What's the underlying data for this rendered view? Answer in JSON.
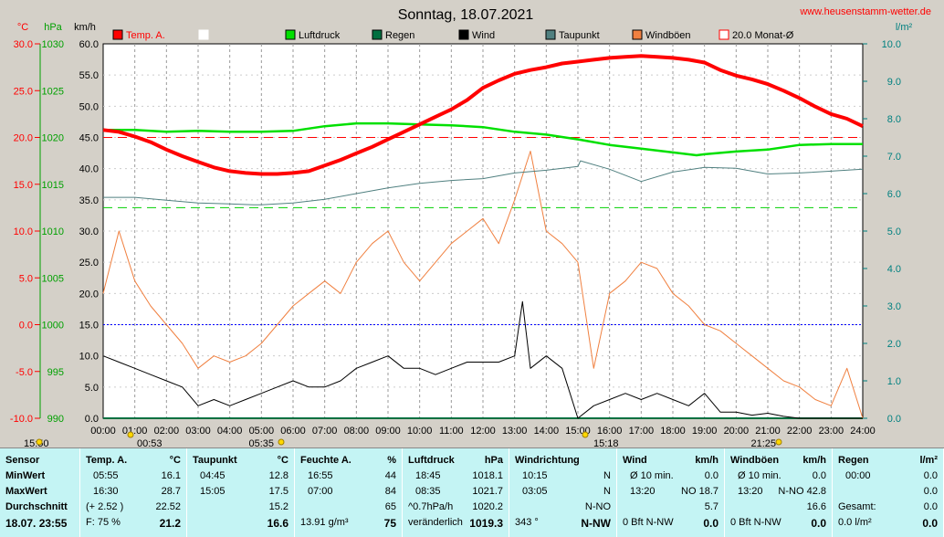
{
  "header": {
    "date_title": "Sonntag, 18.07.2021",
    "site_url": "www.heusenstamm-wetter.de"
  },
  "chart_data": {
    "type": "line",
    "title": "Sonntag, 18.07.2021",
    "units_left": [
      "°C",
      "hPa",
      "km/h"
    ],
    "unit_right": "l/m²",
    "axes": {
      "temp": {
        "label": "°C",
        "ticks": [
          "30.0",
          "25.0",
          "20.0",
          "15.0",
          "10.0",
          "5.0",
          "0.0",
          "-5.0",
          "-10.0"
        ],
        "range": [
          -10,
          30
        ],
        "color": "#ff0000"
      },
      "pressure": {
        "label": "hPa",
        "ticks": [
          "1030",
          "1025",
          "1020",
          "1015",
          "1010",
          "1005",
          "1000",
          "995",
          "990"
        ],
        "range": [
          990,
          1030
        ],
        "color": "#00a000"
      },
      "wind": {
        "label": "km/h",
        "ticks": [
          "60.0",
          "55.0",
          "50.0",
          "45.0",
          "40.0",
          "35.0",
          "30.0",
          "25.0",
          "20.0",
          "15.0",
          "10.0",
          "5.0",
          "0.0"
        ],
        "range": [
          0,
          60
        ],
        "color": "#000000"
      },
      "rain": {
        "label": "l/m²",
        "ticks": [
          "10.0",
          "9.0",
          "8.0",
          "7.0",
          "6.0",
          "5.0",
          "4.0",
          "3.0",
          "2.0",
          "1.0",
          "0.0"
        ],
        "range": [
          0,
          10
        ],
        "color": "#008080"
      }
    },
    "x_ticks": [
      "00:00",
      "01:00",
      "02:00",
      "03:00",
      "04:00",
      "05:00",
      "06:00",
      "07:00",
      "08:00",
      "09:00",
      "10:00",
      "11:00",
      "12:00",
      "13:00",
      "14:00",
      "15:00",
      "16:00",
      "17:00",
      "18:00",
      "19:00",
      "20:00",
      "21:00",
      "22:00",
      "23:00",
      "24:00"
    ],
    "x_range_hours": [
      0,
      24
    ],
    "legend": [
      {
        "label": "Temp. A.",
        "color": "#ff0000",
        "style": "filled"
      },
      {
        "label": "",
        "color": "#ffffff",
        "style": "outline"
      },
      {
        "label": "Luftdruck",
        "color": "#00e000",
        "style": "filled"
      },
      {
        "label": "Regen",
        "color": "#007040",
        "style": "filled"
      },
      {
        "label": "Wind",
        "color": "#000000",
        "style": "filled"
      },
      {
        "label": "Taupunkt",
        "color": "#508080",
        "style": "filled"
      },
      {
        "label": "Windböen",
        "color": "#f08040",
        "style": "filled"
      },
      {
        "label": "20.0 Monat-Ø",
        "color": "#ff0000",
        "style": "outline"
      }
    ],
    "reference_lines": {
      "temp_month_avg": 20.0,
      "pressure_ref": 1012.5,
      "zero_temp": 0.0
    },
    "series": [
      {
        "name": "Temp. A.",
        "axis": "temp",
        "color": "#ff0000",
        "x": [
          0,
          0.5,
          1,
          1.5,
          2,
          2.5,
          3,
          3.5,
          4,
          4.5,
          5,
          5.5,
          6,
          6.5,
          7,
          7.5,
          8,
          8.5,
          9,
          9.5,
          10,
          10.5,
          11,
          11.5,
          12,
          12.5,
          13,
          13.5,
          14,
          14.5,
          15,
          15.5,
          16,
          16.5,
          17,
          17.5,
          18,
          18.5,
          19,
          19.5,
          20,
          20.5,
          21,
          21.5,
          22,
          22.5,
          23,
          23.5,
          24
        ],
        "y": [
          20.8,
          20.6,
          20.1,
          19.5,
          18.7,
          18.0,
          17.4,
          16.8,
          16.4,
          16.2,
          16.1,
          16.1,
          16.2,
          16.4,
          17.0,
          17.6,
          18.3,
          19.0,
          19.8,
          20.6,
          21.4,
          22.2,
          23.0,
          24.0,
          25.3,
          26.1,
          26.8,
          27.2,
          27.5,
          27.9,
          28.1,
          28.3,
          28.5,
          28.6,
          28.7,
          28.6,
          28.5,
          28.3,
          28.0,
          27.2,
          26.6,
          26.2,
          25.7,
          25.0,
          24.2,
          23.3,
          22.5,
          22.0,
          21.2
        ]
      },
      {
        "name": "Luftdruck",
        "axis": "pressure",
        "color": "#00e000",
        "x": [
          0,
          1,
          2,
          3,
          4,
          5,
          6,
          7,
          8,
          9,
          10,
          11,
          12,
          13,
          14,
          15,
          16,
          17,
          18,
          18.75,
          19,
          20,
          21,
          22,
          23,
          24
        ],
        "y": [
          1020.8,
          1020.8,
          1020.6,
          1020.7,
          1020.6,
          1020.6,
          1020.7,
          1021.2,
          1021.5,
          1021.5,
          1021.4,
          1021.3,
          1021.1,
          1020.6,
          1020.3,
          1019.8,
          1019.2,
          1018.8,
          1018.4,
          1018.1,
          1018.2,
          1018.5,
          1018.7,
          1019.2,
          1019.3,
          1019.3
        ]
      },
      {
        "name": "Taupunkt",
        "axis": "temp",
        "color": "#508080",
        "x": [
          0,
          1,
          2,
          3,
          4,
          4.75,
          5,
          6,
          7,
          8,
          9,
          10,
          11,
          12,
          13,
          14,
          15,
          15.08,
          16,
          17,
          18,
          19,
          20,
          21,
          22,
          23,
          24
        ],
        "y": [
          13.6,
          13.6,
          13.3,
          13.0,
          12.9,
          12.8,
          12.8,
          13.0,
          13.4,
          14.0,
          14.6,
          15.1,
          15.4,
          15.6,
          16.2,
          16.5,
          16.9,
          17.5,
          16.6,
          15.3,
          16.3,
          16.8,
          16.7,
          16.1,
          16.2,
          16.4,
          16.6
        ]
      },
      {
        "name": "Wind",
        "axis": "wind",
        "color": "#000000",
        "x": [
          0,
          0.5,
          1,
          1.5,
          2,
          2.5,
          3,
          3.5,
          4,
          4.5,
          5,
          5.5,
          6,
          6.5,
          7,
          7.5,
          8,
          8.5,
          9,
          9.5,
          10,
          10.5,
          11,
          11.5,
          12,
          12.5,
          13,
          13.25,
          13.5,
          14,
          14.5,
          15,
          15.5,
          16,
          16.5,
          17,
          17.5,
          18,
          18.5,
          19,
          19.5,
          20,
          20.5,
          21,
          21.5,
          22,
          22.5,
          23,
          23.5,
          24
        ],
        "y": [
          10,
          9,
          8,
          7,
          6,
          5,
          2,
          3,
          2,
          3,
          4,
          5,
          6,
          5,
          5,
          6,
          8,
          9,
          10,
          8,
          8,
          7,
          8,
          9,
          9,
          9,
          10,
          18.7,
          8,
          10,
          8,
          0,
          2,
          3,
          4,
          3,
          4,
          3,
          2,
          4,
          1,
          1,
          0.5,
          0.8,
          0.3,
          0,
          0,
          0,
          0,
          0
        ]
      },
      {
        "name": "Windböen",
        "axis": "wind",
        "color": "#f08040",
        "x": [
          0,
          0.5,
          1,
          1.5,
          2,
          2.5,
          3,
          3.5,
          4,
          4.5,
          5,
          5.5,
          6,
          6.5,
          7,
          7.5,
          8,
          8.5,
          9,
          9.5,
          10,
          10.5,
          11,
          11.5,
          12,
          12.5,
          13,
          13.5,
          14,
          14.5,
          15,
          15.5,
          16,
          16.5,
          17,
          17.5,
          18,
          18.5,
          19,
          19.5,
          20,
          20.5,
          21,
          21.5,
          22,
          22.5,
          23,
          23.5,
          24
        ],
        "y": [
          20,
          30,
          22,
          18,
          15,
          12,
          8,
          10,
          9,
          10,
          12,
          15,
          18,
          20,
          22,
          20,
          25,
          28,
          30,
          25,
          22,
          25,
          28,
          30,
          32,
          28,
          35,
          42.8,
          30,
          28,
          25,
          8,
          20,
          22,
          25,
          24,
          20,
          18,
          15,
          14,
          12,
          10,
          8,
          6,
          5,
          3,
          2,
          8,
          0
        ]
      },
      {
        "name": "Regen",
        "axis": "rain",
        "color": "#007040",
        "x": [
          0,
          24
        ],
        "y": [
          0,
          0
        ]
      }
    ]
  },
  "markers": {
    "left": "15:50",
    "m1": "00:53",
    "m2": "05:35",
    "m3": "15:18",
    "m4": "21:25"
  },
  "stats": {
    "sensor": {
      "title": "Sensor",
      "min": "MinWert",
      "max": "MaxWert",
      "avg": "Durchschnitt",
      "now": "18.07. 23:55"
    },
    "temp": {
      "title": "Temp. A.",
      "unit": "°C",
      "min_time": "05:55",
      "min_val": "16.1",
      "max_time": "16:30",
      "max_val": "28.7",
      "avg_note": "(+ 2.52 )",
      "avg_val": "22.52",
      "cur_note": "F: 75 %",
      "cur_val": "21.2"
    },
    "dew": {
      "title": "Taupunkt",
      "unit": "°C",
      "min_time": "04:45",
      "min_val": "12.8",
      "max_time": "15:05",
      "max_val": "17.5",
      "avg_val": "15.2",
      "cur_val": "16.6"
    },
    "hum": {
      "title": "Feuchte A.",
      "unit": "%",
      "min_time": "16:55",
      "min_val": "44",
      "max_time": "07:00",
      "max_val": "84",
      "avg_val": "65",
      "cur_note": "13.91 g/m³",
      "cur_val": "75"
    },
    "pres": {
      "title": "Luftdruck",
      "unit": "hPa",
      "min_time": "18:45",
      "min_val": "1018.1",
      "max_time": "08:35",
      "max_val": "1021.7",
      "avg_note": "^0.7hPa/h",
      "avg_val": "1020.2",
      "cur_note": "veränderlich",
      "cur_val": "1019.3"
    },
    "wdir": {
      "title": "Windrichtung",
      "min_time": "10:15",
      "min_val": "N",
      "max_time": "03:05",
      "max_val": "N",
      "avg_val": "N-NO",
      "cur_note": "343 °",
      "cur_val": "N-NW"
    },
    "wind": {
      "title": "Wind",
      "unit": "km/h",
      "min_time": "Ø 10 min.",
      "min_val": "0.0",
      "max_time": "13:20",
      "max_val": "NO 18.7",
      "avg_val": "5.7",
      "cur_note": "0 Bft N-NW",
      "cur_val": "0.0"
    },
    "gust": {
      "title": "Windböen",
      "unit": "km/h",
      "min_time": "Ø 10 min.",
      "min_val": "0.0",
      "max_time": "13:20",
      "max_val": "N-NO 42.8",
      "avg_val": "16.6",
      "cur_note": "0 Bft N-NW",
      "cur_val": "0.0"
    },
    "rain": {
      "title": "Regen",
      "unit": "l/m²",
      "min_time": "00:00",
      "min_val": "0.0",
      "max_time": "",
      "max_val": "0.0",
      "avg_note": "Gesamt:",
      "avg_val": "0.0",
      "cur_note": "0.0 l/m²",
      "cur_val": "0.0"
    }
  }
}
